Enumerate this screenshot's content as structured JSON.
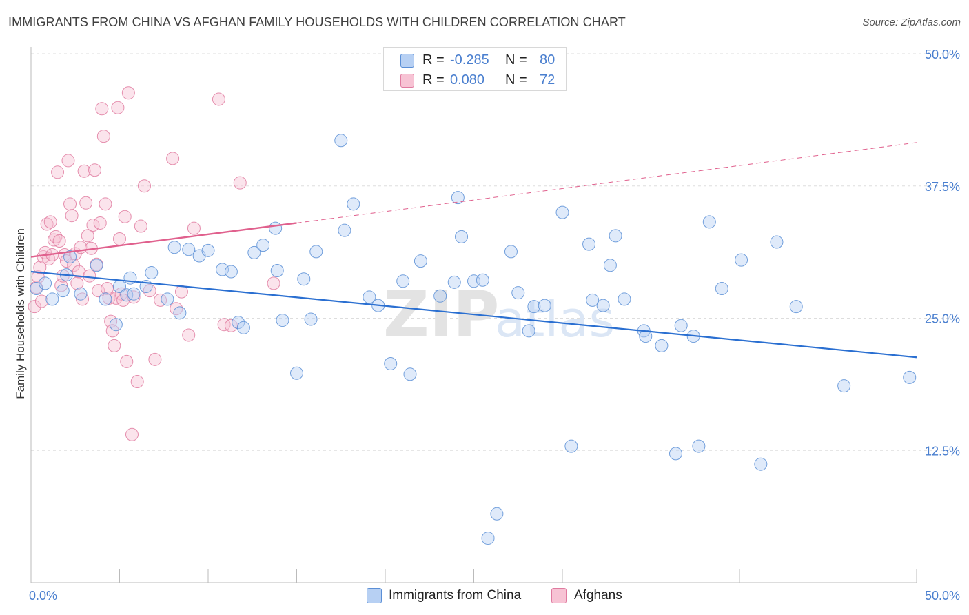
{
  "title": "IMMIGRANTS FROM CHINA VS AFGHAN FAMILY HOUSEHOLDS WITH CHILDREN CORRELATION CHART",
  "source": "Source: ZipAtlas.com",
  "watermark": {
    "zip": "ZIP",
    "atlas": "atlas"
  },
  "legend": {
    "r_label": "R =",
    "n_label": "N =",
    "rows": [
      {
        "r": "-0.285",
        "n": "80",
        "color": "#5b8fd6",
        "fill": "#b7d0f3"
      },
      {
        "r": "0.080",
        "n": "72",
        "color": "#e07ba0",
        "fill": "#f7c3d4"
      }
    ]
  },
  "bottom_legend": [
    {
      "label": "Immigrants from China",
      "color": "#5b8fd6",
      "fill": "#b7d0f3"
    },
    {
      "label": "Afghans",
      "color": "#e07ba0",
      "fill": "#f7c3d4"
    }
  ],
  "colors": {
    "blue_line": "#2a6fd1",
    "pink_line": "#e0608d",
    "axis_text": "#4a7fcf",
    "grid": "#dddddd"
  },
  "chart_data": {
    "type": "scatter",
    "title": "IMMIGRANTS FROM CHINA VS AFGHAN FAMILY HOUSEHOLDS WITH CHILDREN CORRELATION CHART",
    "xlabel": "",
    "ylabel": "Family Households with Children",
    "xlim": [
      0,
      50
    ],
    "ylim": [
      0,
      50
    ],
    "x_tick_labels": [
      "0.0%",
      "50.0%"
    ],
    "y_ticks": [
      12.5,
      25.0,
      37.5,
      50.0
    ],
    "y_tick_labels": [
      "12.5%",
      "25.0%",
      "37.5%",
      "50.0%"
    ],
    "grid": true,
    "legend_position": "top-center",
    "series": [
      {
        "name": "Immigrants from China",
        "color": "#5b8fd6",
        "trend": {
          "x": [
            0,
            50
          ],
          "y": [
            29.4,
            21.3
          ],
          "dashed_from": null
        },
        "points": [
          [
            0.3,
            27.8
          ],
          [
            0.8,
            28.3
          ],
          [
            1.2,
            26.8
          ],
          [
            1.8,
            27.6
          ],
          [
            2.0,
            29.1
          ],
          [
            2.2,
            30.8
          ],
          [
            2.8,
            27.3
          ],
          [
            3.7,
            30.0
          ],
          [
            4.2,
            26.8
          ],
          [
            4.8,
            24.4
          ],
          [
            5.0,
            28.0
          ],
          [
            5.4,
            27.2
          ],
          [
            5.6,
            28.8
          ],
          [
            5.8,
            27.3
          ],
          [
            6.5,
            28.0
          ],
          [
            6.8,
            29.3
          ],
          [
            7.7,
            26.8
          ],
          [
            8.1,
            31.7
          ],
          [
            8.4,
            25.5
          ],
          [
            8.9,
            31.5
          ],
          [
            9.5,
            30.9
          ],
          [
            10.0,
            31.4
          ],
          [
            10.8,
            29.6
          ],
          [
            11.3,
            29.4
          ],
          [
            11.7,
            24.6
          ],
          [
            12.0,
            24.1
          ],
          [
            12.6,
            31.2
          ],
          [
            13.1,
            31.9
          ],
          [
            13.8,
            33.5
          ],
          [
            13.9,
            29.5
          ],
          [
            14.2,
            24.8
          ],
          [
            15.0,
            19.8
          ],
          [
            15.4,
            28.7
          ],
          [
            15.8,
            24.9
          ],
          [
            16.1,
            31.3
          ],
          [
            17.5,
            41.8
          ],
          [
            17.7,
            33.3
          ],
          [
            18.2,
            35.8
          ],
          [
            19.1,
            27.0
          ],
          [
            19.6,
            26.2
          ],
          [
            20.3,
            20.7
          ],
          [
            21.0,
            28.5
          ],
          [
            21.4,
            19.7
          ],
          [
            22.0,
            30.4
          ],
          [
            23.1,
            27.1
          ],
          [
            23.9,
            28.4
          ],
          [
            24.1,
            36.4
          ],
          [
            24.3,
            32.7
          ],
          [
            25.0,
            28.5
          ],
          [
            25.5,
            28.6
          ],
          [
            25.8,
            4.2
          ],
          [
            26.3,
            6.5
          ],
          [
            27.1,
            31.3
          ],
          [
            27.5,
            27.4
          ],
          [
            28.1,
            23.8
          ],
          [
            28.4,
            26.1
          ],
          [
            29.0,
            26.2
          ],
          [
            30.0,
            35.0
          ],
          [
            30.5,
            12.9
          ],
          [
            31.5,
            32.0
          ],
          [
            31.7,
            26.7
          ],
          [
            32.3,
            26.2
          ],
          [
            32.7,
            30.0
          ],
          [
            33.0,
            32.8
          ],
          [
            33.5,
            26.8
          ],
          [
            34.6,
            23.8
          ],
          [
            34.7,
            23.3
          ],
          [
            35.6,
            22.4
          ],
          [
            36.4,
            12.2
          ],
          [
            36.7,
            24.3
          ],
          [
            37.4,
            23.3
          ],
          [
            37.7,
            12.9
          ],
          [
            38.3,
            34.1
          ],
          [
            39.0,
            27.8
          ],
          [
            40.1,
            30.5
          ],
          [
            41.2,
            11.2
          ],
          [
            42.1,
            32.2
          ],
          [
            43.2,
            26.1
          ],
          [
            45.9,
            18.6
          ],
          [
            49.6,
            19.4
          ]
        ]
      },
      {
        "name": "Afghans",
        "color": "#e07ba0",
        "trend": {
          "x": [
            0,
            15.0,
            50
          ],
          "y": [
            30.8,
            34.0,
            41.6
          ],
          "dashed_from": 15.0
        },
        "points": [
          [
            0.2,
            26.1
          ],
          [
            0.3,
            27.9
          ],
          [
            0.4,
            28.9
          ],
          [
            0.5,
            29.8
          ],
          [
            0.6,
            26.6
          ],
          [
            0.7,
            30.8
          ],
          [
            0.8,
            31.2
          ],
          [
            0.9,
            33.9
          ],
          [
            1.0,
            30.6
          ],
          [
            1.1,
            34.1
          ],
          [
            1.2,
            31.0
          ],
          [
            1.3,
            32.4
          ],
          [
            1.4,
            32.7
          ],
          [
            1.5,
            38.8
          ],
          [
            1.6,
            32.3
          ],
          [
            1.7,
            28.1
          ],
          [
            1.8,
            29.0
          ],
          [
            1.9,
            31.0
          ],
          [
            2.0,
            30.4
          ],
          [
            2.1,
            39.9
          ],
          [
            2.2,
            35.8
          ],
          [
            2.3,
            34.7
          ],
          [
            2.4,
            30.0
          ],
          [
            2.5,
            31.1
          ],
          [
            2.6,
            28.3
          ],
          [
            2.7,
            29.4
          ],
          [
            2.8,
            31.7
          ],
          [
            2.9,
            26.8
          ],
          [
            3.0,
            38.9
          ],
          [
            3.1,
            35.9
          ],
          [
            3.2,
            32.8
          ],
          [
            3.3,
            29.0
          ],
          [
            3.4,
            31.6
          ],
          [
            3.5,
            33.8
          ],
          [
            3.6,
            39.0
          ],
          [
            3.7,
            30.1
          ],
          [
            3.8,
            27.6
          ],
          [
            3.9,
            34.0
          ],
          [
            4.0,
            44.8
          ],
          [
            4.1,
            42.2
          ],
          [
            4.2,
            35.8
          ],
          [
            4.3,
            27.8
          ],
          [
            4.4,
            26.9
          ],
          [
            4.5,
            24.7
          ],
          [
            4.6,
            23.8
          ],
          [
            4.7,
            22.4
          ],
          [
            4.8,
            26.9
          ],
          [
            4.9,
            44.9
          ],
          [
            5.0,
            32.5
          ],
          [
            5.1,
            27.3
          ],
          [
            5.2,
            26.7
          ],
          [
            5.3,
            34.6
          ],
          [
            5.4,
            20.9
          ],
          [
            5.5,
            46.3
          ],
          [
            5.7,
            14.0
          ],
          [
            5.8,
            27.0
          ],
          [
            6.0,
            19.0
          ],
          [
            6.2,
            33.7
          ],
          [
            6.4,
            37.5
          ],
          [
            6.7,
            27.6
          ],
          [
            7.0,
            21.1
          ],
          [
            7.3,
            26.7
          ],
          [
            8.0,
            40.1
          ],
          [
            8.2,
            25.9
          ],
          [
            8.5,
            27.5
          ],
          [
            8.9,
            23.4
          ],
          [
            9.2,
            33.5
          ],
          [
            10.6,
            45.7
          ],
          [
            10.9,
            24.4
          ],
          [
            11.3,
            24.3
          ],
          [
            11.8,
            37.8
          ],
          [
            13.7,
            28.3
          ]
        ]
      }
    ]
  }
}
